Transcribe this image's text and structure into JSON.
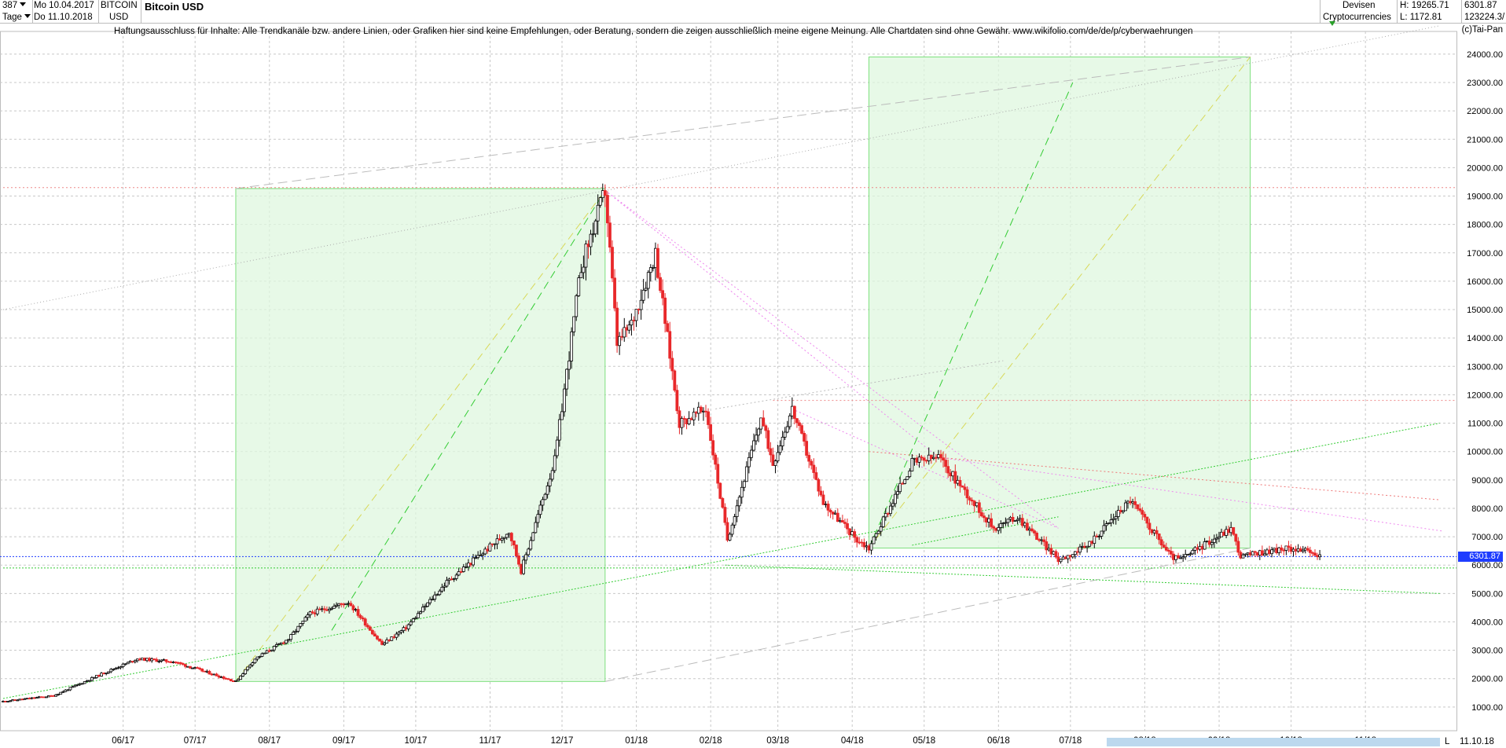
{
  "header": {
    "count": "387",
    "period": "Tage",
    "date_from": "Mo 10.04.2017",
    "date_to": "Do 11.10.2018",
    "symbol_code": "BITCOIN",
    "symbol_ccy": "USD",
    "title": "Bitcoin USD",
    "group1": "Devisen",
    "group2": "Cryptocurrencies",
    "high_label": "H: 19265.71",
    "low_label": "L: 1172.81",
    "last": "6301.87",
    "volume": "123224.3/"
  },
  "disclaimer": "Haftungsausschluss für Inhalte: Alle Trendkanäle bzw. andere Linien, oder Grafiken hier sind keine Empfehlungen, oder Beratung, sondern die zeigen ausschließlich meine eigene Meinung. Alle Chartdaten sind ohne Gewähr.  www.wikifolio.com/de/de/p/cyberwaehrungen",
  "copyright": "(c)Tai-Pan",
  "footer": {
    "end_date": "11.10.18",
    "scroll_button": "L"
  },
  "colors": {
    "up": "#000000",
    "down": "#e8282a",
    "box": "#7ee07e",
    "grid": "#c8c8c8",
    "price_line": "#1e3cff"
  },
  "chart_data": {
    "type": "candlestick",
    "title": "Bitcoin USD",
    "ylim": [
      0,
      24700
    ],
    "yticks": [
      1000,
      2000,
      3000,
      4000,
      5000,
      6000,
      7000,
      8000,
      9000,
      10000,
      11000,
      12000,
      13000,
      14000,
      15000,
      16000,
      17000,
      18000,
      19000,
      20000,
      21000,
      22000,
      23000,
      24000
    ],
    "ytick_labels": [
      "1000.00",
      "2000.00",
      "3000.00",
      "4000.00",
      "5000.00",
      "6000.00",
      "7000.00",
      "8000.00",
      "9000.00",
      "10000.00",
      "11000.00",
      "12000.00",
      "13000.00",
      "14000.00",
      "15000.00",
      "16000.00",
      "17000.00",
      "18000.00",
      "19000.00",
      "20000.00",
      "21000.00",
      "22000.00",
      "23000.00",
      "24000.00"
    ],
    "x_labels": [
      "06/17",
      "07/17",
      "08/17",
      "09/17",
      "10/17",
      "11/17",
      "12/17",
      "01/18",
      "02/18",
      "03/18",
      "04/18",
      "05/18",
      "06/18",
      "07/18",
      "08/18",
      "09/18",
      "10/18",
      "11/18"
    ],
    "last_price": 6301.87,
    "last_price_label": "6301.87",
    "anchors_week_close": [
      [
        "2017-04-10",
        1200
      ],
      [
        "2017-05-01",
        1400
      ],
      [
        "2017-05-22",
        2200
      ],
      [
        "2017-06-05",
        2700
      ],
      [
        "2017-06-20",
        2600
      ],
      [
        "2017-07-16",
        1900
      ],
      [
        "2017-07-24",
        2700
      ],
      [
        "2017-08-07",
        3400
      ],
      [
        "2017-08-16",
        4300
      ],
      [
        "2017-09-01",
        4700
      ],
      [
        "2017-09-15",
        3200
      ],
      [
        "2017-09-25",
        3800
      ],
      [
        "2017-10-12",
        5400
      ],
      [
        "2017-11-07",
        7200
      ],
      [
        "2017-11-12",
        5800
      ],
      [
        "2017-11-26",
        9700
      ],
      [
        "2017-12-07",
        16500
      ],
      [
        "2017-12-17",
        19200
      ],
      [
        "2017-12-22",
        13800
      ],
      [
        "2017-12-28",
        14500
      ],
      [
        "2018-01-07",
        17000
      ],
      [
        "2018-01-17",
        11000
      ],
      [
        "2018-01-28",
        11500
      ],
      [
        "2018-02-06",
        6900
      ],
      [
        "2018-02-20",
        11200
      ],
      [
        "2018-02-25",
        9600
      ],
      [
        "2018-03-05",
        11500
      ],
      [
        "2018-03-18",
        8200
      ],
      [
        "2018-04-01",
        6900
      ],
      [
        "2018-04-06",
        6600
      ],
      [
        "2018-04-24",
        9600
      ],
      [
        "2018-05-05",
        9800
      ],
      [
        "2018-05-28",
        7300
      ],
      [
        "2018-06-07",
        7700
      ],
      [
        "2018-06-24",
        6200
      ],
      [
        "2018-07-05",
        6600
      ],
      [
        "2018-07-24",
        8300
      ],
      [
        "2018-08-10",
        6300
      ],
      [
        "2018-08-14",
        6200
      ],
      [
        "2018-09-04",
        7300
      ],
      [
        "2018-09-08",
        6300
      ],
      [
        "2018-09-20",
        6500
      ],
      [
        "2018-10-01",
        6600
      ],
      [
        "2018-10-11",
        6301.87
      ]
    ]
  }
}
